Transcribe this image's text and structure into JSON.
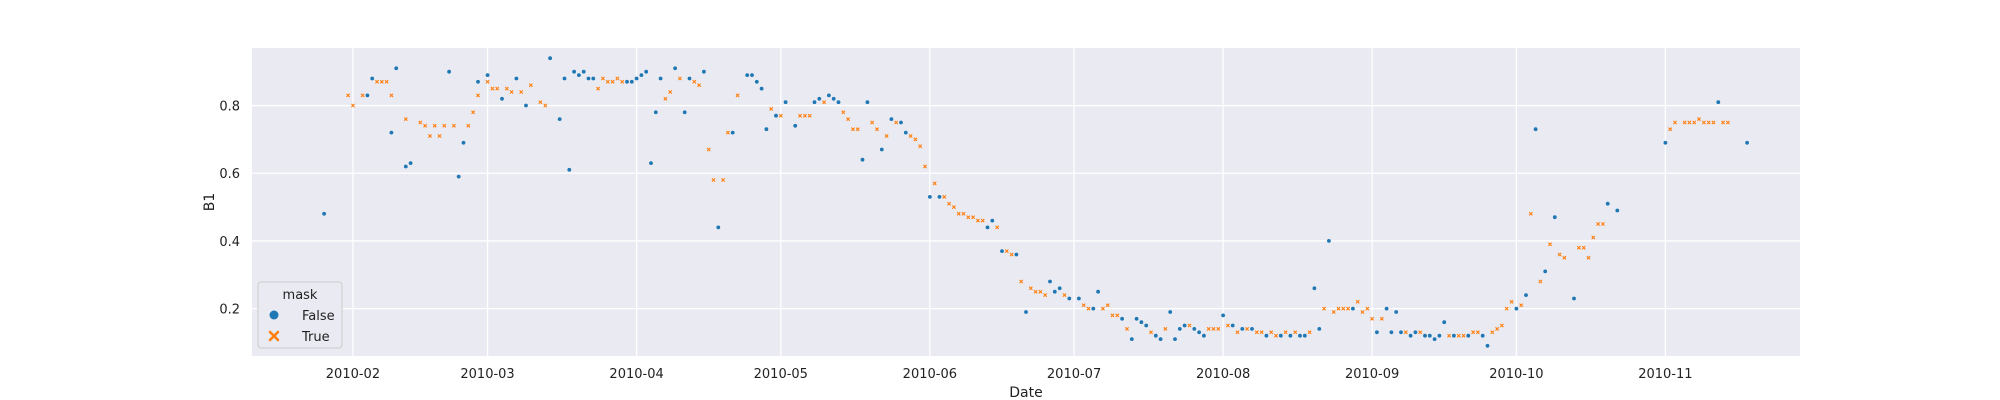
{
  "chart_data": {
    "type": "scatter",
    "xlabel": "Date",
    "ylabel": "B1",
    "xlim": [
      "2010-01-11",
      "2010-11-29"
    ],
    "ylim": [
      0.06,
      0.97
    ],
    "x_ticks": [
      "2010-02-01",
      "2010-03-01",
      "2010-04-01",
      "2010-05-01",
      "2010-06-01",
      "2010-07-01",
      "2010-08-01",
      "2010-09-01",
      "2010-10-01",
      "2010-11-01"
    ],
    "x_tick_labels": [
      "2010-02",
      "2010-03",
      "2010-04",
      "2010-05",
      "2010-06",
      "2010-07",
      "2010-08",
      "2010-09",
      "2010-10",
      "2010-11"
    ],
    "y_ticks": [
      0.2,
      0.4,
      0.6,
      0.8
    ],
    "y_tick_labels": [
      "0.2",
      "0.4",
      "0.6",
      "0.8"
    ],
    "grid": true,
    "legend": {
      "title": "mask",
      "placement": "lower-left",
      "entries": [
        {
          "label": "False",
          "marker": "circle",
          "color": "#1f77b4"
        },
        {
          "label": "True",
          "marker": "x",
          "color": "#ff7f0e"
        }
      ]
    },
    "background": "#eaeaf2",
    "series": [
      {
        "name": "False",
        "color": "#1f77b4",
        "marker": "circle",
        "points": [
          [
            "2010-01-26",
            0.48
          ],
          [
            "2010-02-04",
            0.83
          ],
          [
            "2010-02-05",
            0.88
          ],
          [
            "2010-02-09",
            0.72
          ],
          [
            "2010-02-10",
            0.91
          ],
          [
            "2010-02-12",
            0.62
          ],
          [
            "2010-02-13",
            0.63
          ],
          [
            "2010-02-21",
            0.9
          ],
          [
            "2010-02-23",
            0.59
          ],
          [
            "2010-02-24",
            0.69
          ],
          [
            "2010-02-27",
            0.87
          ],
          [
            "2010-03-01",
            0.89
          ],
          [
            "2010-03-04",
            0.82
          ],
          [
            "2010-03-07",
            0.88
          ],
          [
            "2010-03-09",
            0.8
          ],
          [
            "2010-03-14",
            0.94
          ],
          [
            "2010-03-16",
            0.76
          ],
          [
            "2010-03-17",
            0.88
          ],
          [
            "2010-03-18",
            0.61
          ],
          [
            "2010-03-19",
            0.9
          ],
          [
            "2010-03-20",
            0.89
          ],
          [
            "2010-03-21",
            0.9
          ],
          [
            "2010-03-22",
            0.88
          ],
          [
            "2010-03-23",
            0.88
          ],
          [
            "2010-03-30",
            0.87
          ],
          [
            "2010-03-31",
            0.87
          ],
          [
            "2010-04-01",
            0.88
          ],
          [
            "2010-04-02",
            0.89
          ],
          [
            "2010-04-03",
            0.9
          ],
          [
            "2010-04-04",
            0.63
          ],
          [
            "2010-04-05",
            0.78
          ],
          [
            "2010-04-06",
            0.88
          ],
          [
            "2010-04-09",
            0.91
          ],
          [
            "2010-04-11",
            0.78
          ],
          [
            "2010-04-12",
            0.88
          ],
          [
            "2010-04-15",
            0.9
          ],
          [
            "2010-04-18",
            0.44
          ],
          [
            "2010-04-21",
            0.72
          ],
          [
            "2010-04-24",
            0.89
          ],
          [
            "2010-04-25",
            0.89
          ],
          [
            "2010-04-26",
            0.87
          ],
          [
            "2010-04-27",
            0.85
          ],
          [
            "2010-04-28",
            0.73
          ],
          [
            "2010-04-30",
            0.77
          ],
          [
            "2010-05-02",
            0.81
          ],
          [
            "2010-05-04",
            0.74
          ],
          [
            "2010-05-08",
            0.81
          ],
          [
            "2010-05-09",
            0.82
          ],
          [
            "2010-05-11",
            0.83
          ],
          [
            "2010-05-12",
            0.82
          ],
          [
            "2010-05-13",
            0.81
          ],
          [
            "2010-05-18",
            0.64
          ],
          [
            "2010-05-19",
            0.81
          ],
          [
            "2010-05-22",
            0.67
          ],
          [
            "2010-05-24",
            0.76
          ],
          [
            "2010-05-26",
            0.75
          ],
          [
            "2010-05-27",
            0.72
          ],
          [
            "2010-06-01",
            0.53
          ],
          [
            "2010-06-03",
            0.53
          ],
          [
            "2010-06-13",
            0.44
          ],
          [
            "2010-06-14",
            0.46
          ],
          [
            "2010-06-16",
            0.37
          ],
          [
            "2010-06-19",
            0.36
          ],
          [
            "2010-06-21",
            0.19
          ],
          [
            "2010-06-26",
            0.28
          ],
          [
            "2010-06-27",
            0.25
          ],
          [
            "2010-06-28",
            0.26
          ],
          [
            "2010-06-30",
            0.23
          ],
          [
            "2010-07-02",
            0.23
          ],
          [
            "2010-07-05",
            0.2
          ],
          [
            "2010-07-06",
            0.25
          ],
          [
            "2010-07-11",
            0.17
          ],
          [
            "2010-07-13",
            0.11
          ],
          [
            "2010-07-14",
            0.17
          ],
          [
            "2010-07-15",
            0.16
          ],
          [
            "2010-07-16",
            0.15
          ],
          [
            "2010-07-18",
            0.12
          ],
          [
            "2010-07-19",
            0.11
          ],
          [
            "2010-07-21",
            0.19
          ],
          [
            "2010-07-22",
            0.11
          ],
          [
            "2010-07-23",
            0.14
          ],
          [
            "2010-07-24",
            0.15
          ],
          [
            "2010-07-26",
            0.14
          ],
          [
            "2010-07-27",
            0.13
          ],
          [
            "2010-07-28",
            0.12
          ],
          [
            "2010-08-01",
            0.18
          ],
          [
            "2010-08-03",
            0.15
          ],
          [
            "2010-08-05",
            0.14
          ],
          [
            "2010-08-07",
            0.14
          ],
          [
            "2010-08-10",
            0.12
          ],
          [
            "2010-08-13",
            0.12
          ],
          [
            "2010-08-15",
            0.12
          ],
          [
            "2010-08-17",
            0.12
          ],
          [
            "2010-08-18",
            0.12
          ],
          [
            "2010-08-20",
            0.26
          ],
          [
            "2010-08-21",
            0.14
          ],
          [
            "2010-08-23",
            0.4
          ],
          [
            "2010-08-28",
            0.2
          ],
          [
            "2010-09-02",
            0.13
          ],
          [
            "2010-09-04",
            0.2
          ],
          [
            "2010-09-05",
            0.13
          ],
          [
            "2010-09-06",
            0.19
          ],
          [
            "2010-09-07",
            0.13
          ],
          [
            "2010-09-09",
            0.12
          ],
          [
            "2010-09-10",
            0.13
          ],
          [
            "2010-09-12",
            0.12
          ],
          [
            "2010-09-13",
            0.12
          ],
          [
            "2010-09-14",
            0.11
          ],
          [
            "2010-09-15",
            0.12
          ],
          [
            "2010-09-16",
            0.16
          ],
          [
            "2010-09-18",
            0.12
          ],
          [
            "2010-09-21",
            0.12
          ],
          [
            "2010-09-24",
            0.12
          ],
          [
            "2010-09-25",
            0.09
          ],
          [
            "2010-10-01",
            0.2
          ],
          [
            "2010-10-03",
            0.24
          ],
          [
            "2010-10-05",
            0.73
          ],
          [
            "2010-10-07",
            0.31
          ],
          [
            "2010-10-09",
            0.47
          ],
          [
            "2010-10-13",
            0.23
          ],
          [
            "2010-10-20",
            0.51
          ],
          [
            "2010-10-22",
            0.49
          ],
          [
            "2010-11-01",
            0.69
          ],
          [
            "2010-11-12",
            0.81
          ],
          [
            "2010-11-18",
            0.69
          ]
        ]
      },
      {
        "name": "True",
        "color": "#ff7f0e",
        "marker": "x",
        "points": [
          [
            "2010-01-31",
            0.83
          ],
          [
            "2010-02-01",
            0.8
          ],
          [
            "2010-02-03",
            0.83
          ],
          [
            "2010-02-06",
            0.87
          ],
          [
            "2010-02-07",
            0.87
          ],
          [
            "2010-02-08",
            0.87
          ],
          [
            "2010-02-09",
            0.83
          ],
          [
            "2010-02-12",
            0.76
          ],
          [
            "2010-02-15",
            0.75
          ],
          [
            "2010-02-16",
            0.74
          ],
          [
            "2010-02-17",
            0.71
          ],
          [
            "2010-02-18",
            0.74
          ],
          [
            "2010-02-19",
            0.71
          ],
          [
            "2010-02-20",
            0.74
          ],
          [
            "2010-02-22",
            0.74
          ],
          [
            "2010-02-25",
            0.74
          ],
          [
            "2010-02-26",
            0.78
          ],
          [
            "2010-02-27",
            0.83
          ],
          [
            "2010-03-01",
            0.87
          ],
          [
            "2010-03-02",
            0.85
          ],
          [
            "2010-03-03",
            0.85
          ],
          [
            "2010-03-05",
            0.85
          ],
          [
            "2010-03-06",
            0.84
          ],
          [
            "2010-03-08",
            0.84
          ],
          [
            "2010-03-10",
            0.86
          ],
          [
            "2010-03-12",
            0.81
          ],
          [
            "2010-03-13",
            0.8
          ],
          [
            "2010-03-24",
            0.85
          ],
          [
            "2010-03-25",
            0.88
          ],
          [
            "2010-03-26",
            0.87
          ],
          [
            "2010-03-27",
            0.87
          ],
          [
            "2010-03-28",
            0.88
          ],
          [
            "2010-03-29",
            0.87
          ],
          [
            "2010-04-07",
            0.82
          ],
          [
            "2010-04-08",
            0.84
          ],
          [
            "2010-04-10",
            0.88
          ],
          [
            "2010-04-13",
            0.87
          ],
          [
            "2010-04-14",
            0.86
          ],
          [
            "2010-04-16",
            0.67
          ],
          [
            "2010-04-17",
            0.58
          ],
          [
            "2010-04-19",
            0.58
          ],
          [
            "2010-04-20",
            0.72
          ],
          [
            "2010-04-22",
            0.83
          ],
          [
            "2010-04-29",
            0.79
          ],
          [
            "2010-05-01",
            0.77
          ],
          [
            "2010-05-05",
            0.77
          ],
          [
            "2010-05-06",
            0.77
          ],
          [
            "2010-05-07",
            0.77
          ],
          [
            "2010-05-10",
            0.81
          ],
          [
            "2010-05-14",
            0.78
          ],
          [
            "2010-05-15",
            0.76
          ],
          [
            "2010-05-16",
            0.73
          ],
          [
            "2010-05-17",
            0.73
          ],
          [
            "2010-05-20",
            0.75
          ],
          [
            "2010-05-21",
            0.73
          ],
          [
            "2010-05-23",
            0.71
          ],
          [
            "2010-05-25",
            0.75
          ],
          [
            "2010-05-28",
            0.71
          ],
          [
            "2010-05-29",
            0.7
          ],
          [
            "2010-05-30",
            0.68
          ],
          [
            "2010-05-31",
            0.62
          ],
          [
            "2010-06-02",
            0.57
          ],
          [
            "2010-06-04",
            0.53
          ],
          [
            "2010-06-05",
            0.51
          ],
          [
            "2010-06-06",
            0.5
          ],
          [
            "2010-06-07",
            0.48
          ],
          [
            "2010-06-08",
            0.48
          ],
          [
            "2010-06-09",
            0.47
          ],
          [
            "2010-06-10",
            0.47
          ],
          [
            "2010-06-11",
            0.46
          ],
          [
            "2010-06-12",
            0.46
          ],
          [
            "2010-06-15",
            0.44
          ],
          [
            "2010-06-17",
            0.37
          ],
          [
            "2010-06-18",
            0.36
          ],
          [
            "2010-06-20",
            0.28
          ],
          [
            "2010-06-22",
            0.26
          ],
          [
            "2010-06-23",
            0.25
          ],
          [
            "2010-06-24",
            0.25
          ],
          [
            "2010-06-25",
            0.24
          ],
          [
            "2010-06-29",
            0.24
          ],
          [
            "2010-07-03",
            0.21
          ],
          [
            "2010-07-04",
            0.2
          ],
          [
            "2010-07-07",
            0.2
          ],
          [
            "2010-07-08",
            0.21
          ],
          [
            "2010-07-09",
            0.18
          ],
          [
            "2010-07-10",
            0.18
          ],
          [
            "2010-07-12",
            0.14
          ],
          [
            "2010-07-17",
            0.13
          ],
          [
            "2010-07-20",
            0.14
          ],
          [
            "2010-07-25",
            0.15
          ],
          [
            "2010-07-29",
            0.14
          ],
          [
            "2010-07-30",
            0.14
          ],
          [
            "2010-07-31",
            0.14
          ],
          [
            "2010-08-02",
            0.15
          ],
          [
            "2010-08-04",
            0.13
          ],
          [
            "2010-08-06",
            0.14
          ],
          [
            "2010-08-08",
            0.13
          ],
          [
            "2010-08-09",
            0.13
          ],
          [
            "2010-08-11",
            0.13
          ],
          [
            "2010-08-12",
            0.12
          ],
          [
            "2010-08-14",
            0.13
          ],
          [
            "2010-08-16",
            0.13
          ],
          [
            "2010-08-19",
            0.13
          ],
          [
            "2010-08-22",
            0.2
          ],
          [
            "2010-08-24",
            0.19
          ],
          [
            "2010-08-25",
            0.2
          ],
          [
            "2010-08-26",
            0.2
          ],
          [
            "2010-08-27",
            0.2
          ],
          [
            "2010-08-29",
            0.22
          ],
          [
            "2010-08-30",
            0.19
          ],
          [
            "2010-08-31",
            0.2
          ],
          [
            "2010-09-01",
            0.17
          ],
          [
            "2010-09-03",
            0.17
          ],
          [
            "2010-09-08",
            0.13
          ],
          [
            "2010-09-11",
            0.13
          ],
          [
            "2010-09-17",
            0.12
          ],
          [
            "2010-09-19",
            0.12
          ],
          [
            "2010-09-20",
            0.12
          ],
          [
            "2010-09-22",
            0.13
          ],
          [
            "2010-09-23",
            0.13
          ],
          [
            "2010-09-26",
            0.13
          ],
          [
            "2010-09-27",
            0.14
          ],
          [
            "2010-09-28",
            0.15
          ],
          [
            "2010-09-29",
            0.2
          ],
          [
            "2010-09-30",
            0.22
          ],
          [
            "2010-10-02",
            0.21
          ],
          [
            "2010-10-04",
            0.48
          ],
          [
            "2010-10-06",
            0.28
          ],
          [
            "2010-10-08",
            0.39
          ],
          [
            "2010-10-10",
            0.36
          ],
          [
            "2010-10-11",
            0.35
          ],
          [
            "2010-10-14",
            0.38
          ],
          [
            "2010-10-15",
            0.38
          ],
          [
            "2010-10-16",
            0.35
          ],
          [
            "2010-10-17",
            0.41
          ],
          [
            "2010-10-18",
            0.45
          ],
          [
            "2010-10-19",
            0.45
          ],
          [
            "2010-11-02",
            0.73
          ],
          [
            "2010-11-03",
            0.75
          ],
          [
            "2010-11-05",
            0.75
          ],
          [
            "2010-11-06",
            0.75
          ],
          [
            "2010-11-07",
            0.75
          ],
          [
            "2010-11-08",
            0.76
          ],
          [
            "2010-11-09",
            0.75
          ],
          [
            "2010-11-10",
            0.75
          ],
          [
            "2010-11-11",
            0.75
          ],
          [
            "2010-11-13",
            0.75
          ],
          [
            "2010-11-14",
            0.75
          ]
        ]
      }
    ]
  }
}
